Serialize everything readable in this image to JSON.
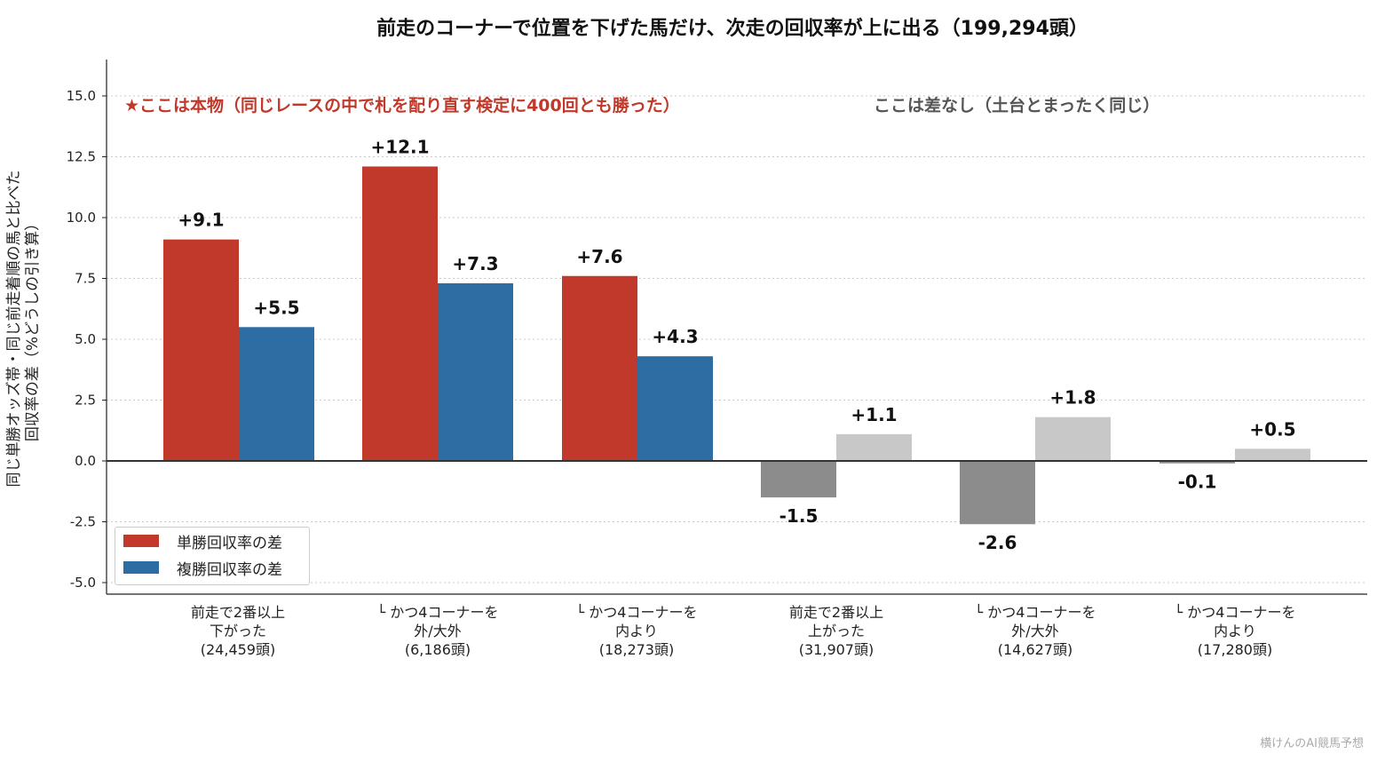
{
  "title": "前走のコーナーで位置を下げた馬だけ、次走の回収率が上に出る（199,294頭）",
  "ylabel_lines": [
    "同じ単勝オッズ帯・同じ前走着順の馬と比べた",
    "回収率の差（%どうしの引き算）"
  ],
  "annotations": {
    "left": "★ここは本物（同じレースの中で札を配り直す検定に400回とも勝った）",
    "right": "ここは差なし（土台とまったく同じ）"
  },
  "legend": {
    "items": [
      {
        "label": "単勝回収率の差",
        "color": "#c0392b"
      },
      {
        "label": "複勝回収率の差",
        "color": "#2e6ca4"
      }
    ]
  },
  "watermark": "横けんのAI競馬予想",
  "colors": {
    "win": "#c0392b",
    "place": "#2e6ca4",
    "win_muted": "#8c8c8c",
    "place_muted": "#c8c8c8"
  },
  "chart_data": {
    "type": "bar",
    "title": "前走のコーナーで位置を下げた馬だけ、次走の回収率が上に出る（199,294頭）",
    "ylim": [
      -5.4,
      16.5
    ],
    "yticks": [
      "15.0",
      "12.5",
      "10.0",
      "7.5",
      "5.0",
      "2.5",
      "0.0",
      "-2.5",
      "-5.0"
    ],
    "ytick_values": [
      15.0,
      12.5,
      10.0,
      7.5,
      5.0,
      2.5,
      0.0,
      -2.5,
      -5.0
    ],
    "grid": "horizontal dotted",
    "legend_position": "lower-left",
    "categories": [
      [
        "前走で2番以上",
        "下がった",
        "(24,459頭)"
      ],
      [
        "└ かつ4コーナーを",
        "外/大外",
        "(6,186頭)"
      ],
      [
        "└ かつ4コーナーを",
        "内より",
        "(18,273頭)"
      ],
      [
        "前走で2番以上",
        "上がった",
        "(31,907頭)"
      ],
      [
        "└ かつ4コーナーを",
        "外/大外",
        "(14,627頭)"
      ],
      [
        "└ かつ4コーナーを",
        "内より",
        "(17,280頭)"
      ]
    ],
    "series": [
      {
        "name": "単勝回収率の差",
        "values": [
          9.1,
          12.1,
          7.6,
          -1.5,
          -2.6,
          -0.1
        ],
        "labels": [
          "+9.1",
          "+12.1",
          "+7.6",
          "-1.5",
          "-2.6",
          "-0.1"
        ]
      },
      {
        "name": "複勝回収率の差",
        "values": [
          5.5,
          7.3,
          4.3,
          1.1,
          1.8,
          0.5
        ],
        "labels": [
          "+5.5",
          "+7.3",
          "+4.3",
          "+1.1",
          "+1.8",
          "+0.5"
        ]
      }
    ],
    "highlighted_groups": [
      0,
      1,
      2
    ]
  }
}
